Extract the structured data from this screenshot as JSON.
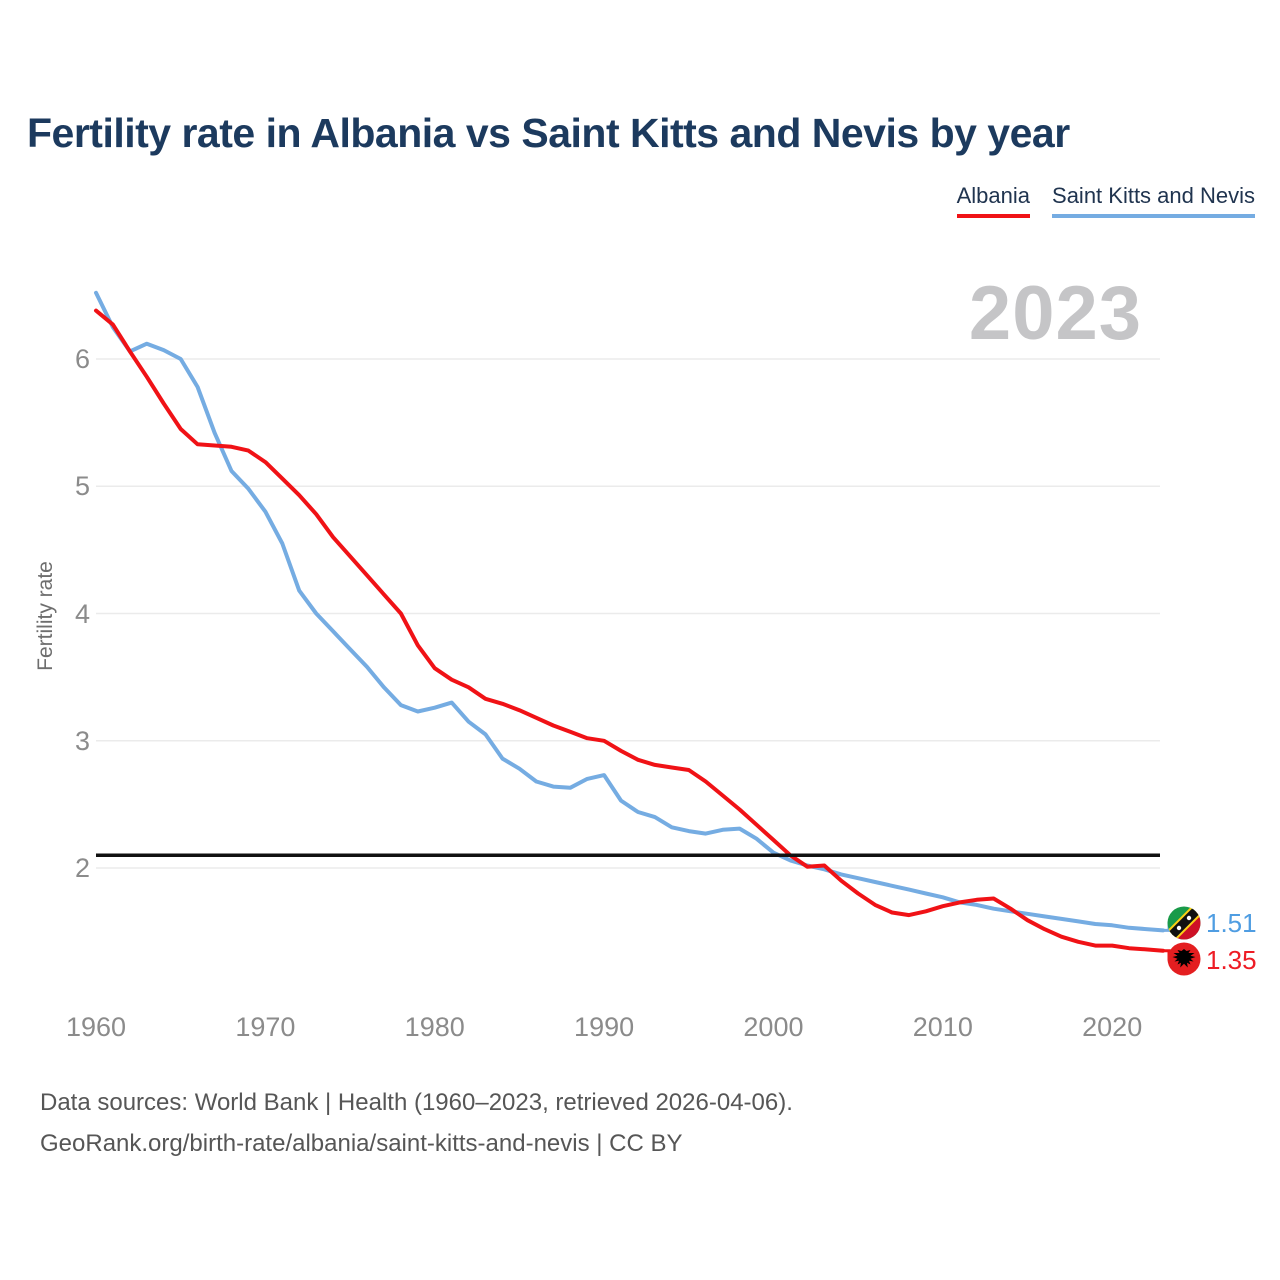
{
  "header": {
    "title": "Fertility rate in Albania vs Saint Kitts and Nevis by year"
  },
  "legend": [
    {
      "label": "Albania",
      "color": "#f01216"
    },
    {
      "label": "Saint Kitts and Nevis",
      "color": "#75ace2"
    }
  ],
  "watermark": "2023",
  "chart_data": {
    "type": "line",
    "title": "Fertility rate in Albania vs Saint Kitts and Nevis by year",
    "xlabel": "",
    "ylabel": "Fertility rate",
    "xlim": [
      1960,
      2023
    ],
    "ylim": [
      1.2,
      6.6
    ],
    "grid": true,
    "x_ticks": [
      1960,
      1970,
      1980,
      1990,
      2000,
      2010,
      2020
    ],
    "y_ticks": [
      2,
      3,
      4,
      5,
      6
    ],
    "reference_line": {
      "value": 2.1,
      "color": "#111111"
    },
    "x": [
      1960,
      1961,
      1962,
      1963,
      1964,
      1965,
      1966,
      1967,
      1968,
      1969,
      1970,
      1971,
      1972,
      1973,
      1974,
      1975,
      1976,
      1977,
      1978,
      1979,
      1980,
      1981,
      1982,
      1983,
      1984,
      1985,
      1986,
      1987,
      1988,
      1989,
      1990,
      1991,
      1992,
      1993,
      1994,
      1995,
      1996,
      1997,
      1998,
      1999,
      2000,
      2001,
      2002,
      2003,
      2004,
      2005,
      2006,
      2007,
      2008,
      2009,
      2010,
      2011,
      2012,
      2013,
      2014,
      2015,
      2016,
      2017,
      2018,
      2019,
      2020,
      2021,
      2022,
      2023
    ],
    "series": [
      {
        "name": "Albania",
        "color": "#f01216",
        "end_label": "1.35",
        "values": [
          6.38,
          6.27,
          6.06,
          5.86,
          5.65,
          5.45,
          5.33,
          5.32,
          5.31,
          5.28,
          5.19,
          5.06,
          4.93,
          4.78,
          4.6,
          4.45,
          4.3,
          4.15,
          4.0,
          3.75,
          3.57,
          3.48,
          3.42,
          3.33,
          3.29,
          3.24,
          3.18,
          3.12,
          3.07,
          3.02,
          3.0,
          2.92,
          2.85,
          2.81,
          2.79,
          2.77,
          2.68,
          2.57,
          2.46,
          2.34,
          2.22,
          2.1,
          2.01,
          2.02,
          1.9,
          1.8,
          1.71,
          1.65,
          1.63,
          1.66,
          1.7,
          1.73,
          1.75,
          1.76,
          1.68,
          1.59,
          1.52,
          1.46,
          1.42,
          1.39,
          1.39,
          1.37,
          1.36,
          1.35
        ]
      },
      {
        "name": "Saint Kitts and Nevis",
        "color": "#75ace2",
        "end_label": "1.51",
        "values": [
          6.52,
          6.25,
          6.06,
          6.12,
          6.07,
          6.0,
          5.78,
          5.42,
          5.12,
          4.98,
          4.8,
          4.55,
          4.18,
          4.0,
          3.86,
          3.72,
          3.58,
          3.42,
          3.28,
          3.23,
          3.26,
          3.3,
          3.15,
          3.05,
          2.86,
          2.78,
          2.68,
          2.64,
          2.63,
          2.7,
          2.73,
          2.53,
          2.44,
          2.4,
          2.32,
          2.29,
          2.27,
          2.3,
          2.31,
          2.23,
          2.12,
          2.06,
          2.02,
          1.99,
          1.95,
          1.92,
          1.89,
          1.86,
          1.83,
          1.8,
          1.77,
          1.73,
          1.71,
          1.68,
          1.66,
          1.64,
          1.62,
          1.6,
          1.58,
          1.56,
          1.55,
          1.53,
          1.52,
          1.51
        ]
      }
    ]
  },
  "footer": {
    "line1": "Data sources: World Bank | Health (1960–2023, retrieved 2026-04-06).",
    "line2": "GeoRank.org/birth-rate/albania/saint-kitts-and-nevis | CC BY"
  }
}
